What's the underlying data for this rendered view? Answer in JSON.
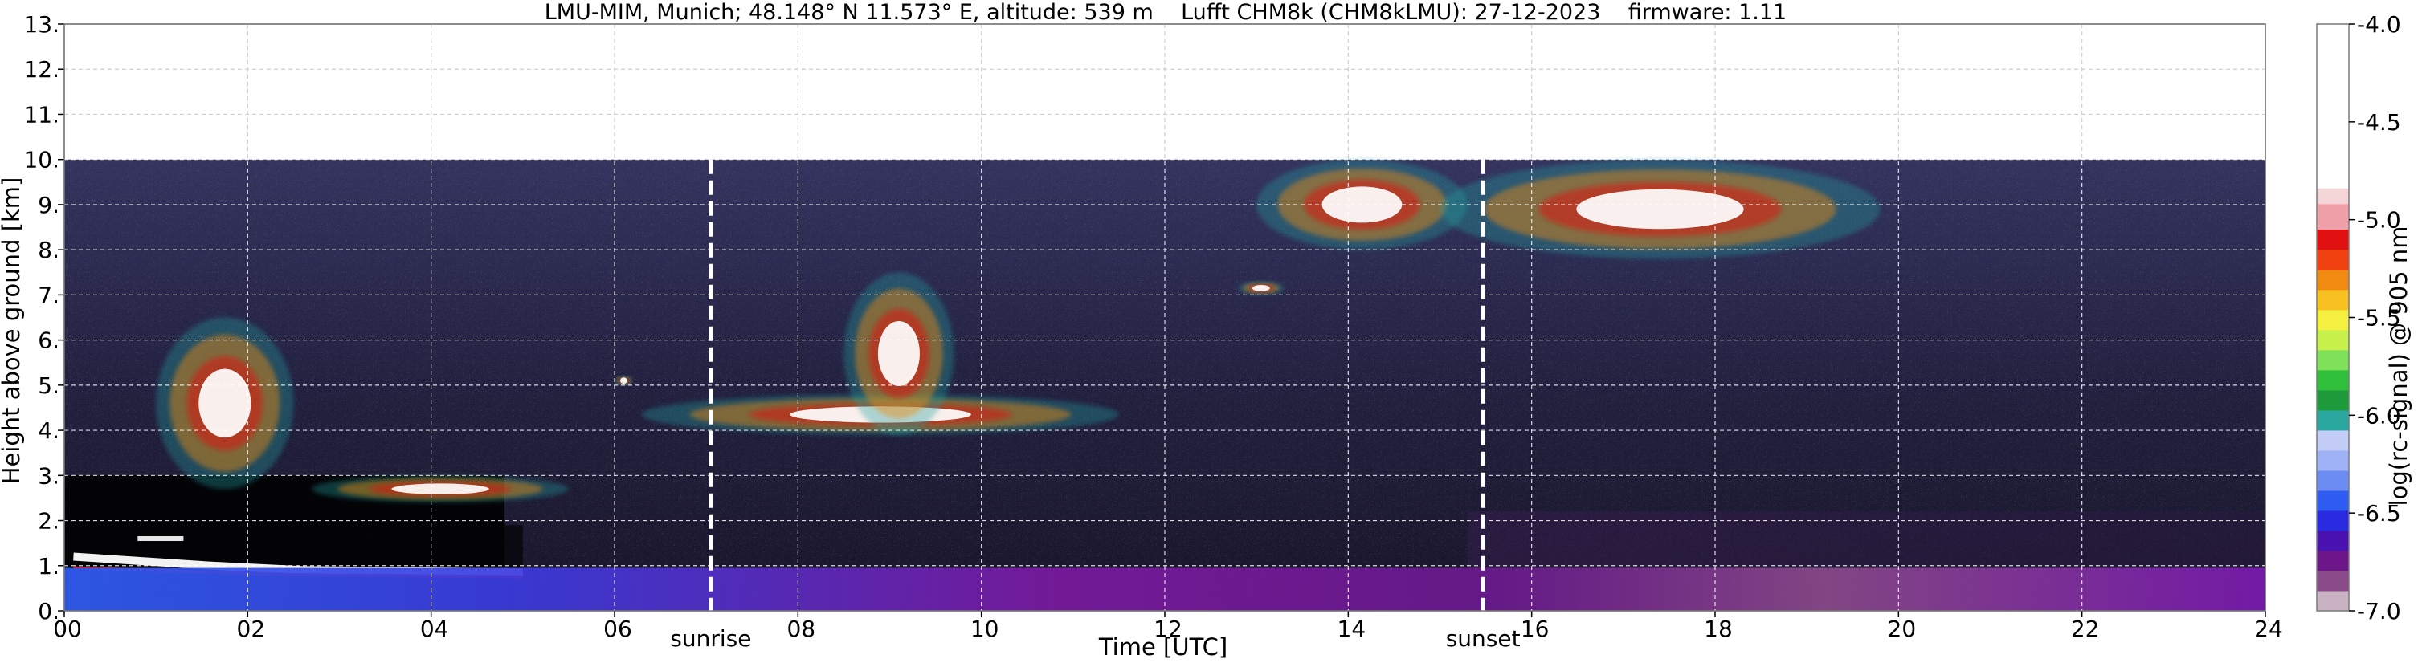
{
  "chart_data": {
    "type": "heatmap",
    "title": "LMU-MIM, Munich; 48.148° N 11.573° E, altitude: 539 m    Lufft CHM8k (CHM8kLMU): 27-12-2023    firmware: 1.11",
    "xlabel": "Time [UTC]",
    "ylabel": "Height above ground [km]",
    "xlim": [
      0,
      24
    ],
    "ylim": [
      0,
      13
    ],
    "x_ticks": [
      "00",
      "02",
      "04",
      "06",
      "08",
      "10",
      "12",
      "14",
      "16",
      "18",
      "20",
      "22",
      "24"
    ],
    "y_ticks": [
      "0.",
      "1.",
      "2.",
      "3.",
      "4.",
      "5.",
      "6.",
      "7.",
      "8.",
      "9.",
      "10.",
      "11.",
      "12.",
      "13."
    ],
    "grid": true,
    "measurement_top_km": 10,
    "events": [
      {
        "label": "sunrise",
        "time_h": 7.05
      },
      {
        "label": "sunset",
        "time_h": 15.47
      }
    ],
    "colorbar": {
      "label": "log(rc-signal) @ 905 nm",
      "min": -7.0,
      "max": -4.0,
      "ticks": [
        "-4.0",
        "-4.5",
        "-5.0",
        "-5.5",
        "-6.0",
        "-6.5",
        "-7.0"
      ],
      "tick_values": [
        -4.0,
        -4.5,
        -5.0,
        -5.5,
        -6.0,
        -6.5,
        -7.0
      ],
      "colors_low_to_high": [
        "#c9b2c2",
        "#8a4a8a",
        "#6d168a",
        "#4a12b0",
        "#2a2ae0",
        "#2e5cf2",
        "#6c8cf4",
        "#9fb2f6",
        "#c4cdf8",
        "#2aa8a0",
        "#1f9a3a",
        "#2fbf3a",
        "#7fe05a",
        "#c8f04a",
        "#f5f040",
        "#f8c020",
        "#f08a10",
        "#f04010",
        "#e01010",
        "#f0a0a8",
        "#f5d6d8",
        "#ffffff"
      ]
    },
    "features": [
      {
        "type": "aerosol_layer",
        "time_range": [
          0,
          24
        ],
        "height_range_km": [
          0,
          1.0
        ]
      },
      {
        "type": "dense_low_layer",
        "time_range": [
          0,
          5
        ],
        "height_range_km": [
          0,
          1.7
        ]
      },
      {
        "type": "cloud",
        "time_range": [
          1.0,
          2.5
        ],
        "height_range_km": [
          2.7,
          6.5
        ]
      },
      {
        "type": "cloud",
        "time_range": [
          2.7,
          5.5
        ],
        "height_range_km": [
          2.4,
          3.0
        ]
      },
      {
        "type": "cloud",
        "time_range": [
          6.0,
          6.2
        ],
        "height_range_km": [
          5.0,
          5.2
        ]
      },
      {
        "type": "cloud",
        "time_range": [
          6.3,
          11.5
        ],
        "height_range_km": [
          3.9,
          4.8
        ]
      },
      {
        "type": "cloud",
        "time_range": [
          8.5,
          9.7
        ],
        "height_range_km": [
          3.9,
          7.5
        ]
      },
      {
        "type": "cloud",
        "time_range": [
          12.8,
          13.3
        ],
        "height_range_km": [
          7.0,
          7.3
        ]
      },
      {
        "type": "cloud",
        "time_range": [
          13.0,
          15.3
        ],
        "height_range_km": [
          8.0,
          10.0
        ]
      },
      {
        "type": "cloud",
        "time_range": [
          15.0,
          19.8
        ],
        "height_range_km": [
          7.8,
          10.0
        ]
      }
    ]
  }
}
